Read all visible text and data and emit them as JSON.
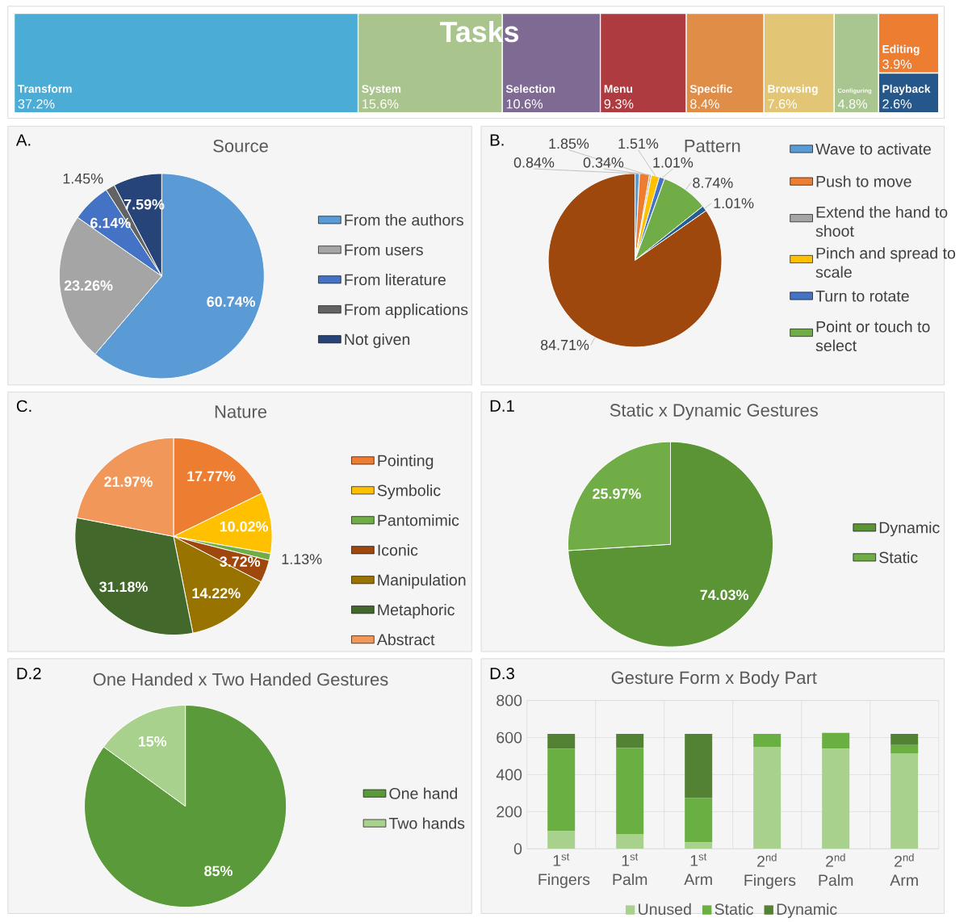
{
  "chart_data": [
    {
      "type": "other",
      "title": "Tasks",
      "categories": [
        "Transform",
        "System",
        "Selection",
        "Menu",
        "Specific",
        "Browsing",
        "Configuring",
        "Editing",
        "Playback"
      ],
      "values": [
        37.2,
        15.6,
        10.6,
        9.3,
        8.4,
        7.6,
        4.8,
        3.9,
        2.6
      ],
      "value_labels": [
        "37.2%",
        "15.6%",
        "10.6%",
        "9.3%",
        "8.4%",
        "7.6%",
        "4.8%",
        "3.9%",
        "2.6%"
      ],
      "colors": [
        "#4bacd6",
        "#a9c48c",
        "#7e6a92",
        "#ad3b3f",
        "#e08d48",
        "#e2c675",
        "#aac690",
        "#ed7d31",
        "#25578a"
      ]
    },
    {
      "type": "pie",
      "title": "Source",
      "annotations": [
        "A."
      ],
      "categories": [
        "From the authors",
        "From users",
        "From literature",
        "From applications",
        "Not given"
      ],
      "values": [
        60.74,
        23.26,
        6.14,
        1.45,
        7.59
      ],
      "value_labels": [
        "60.74%",
        "23.26%",
        "6.14%",
        "1.45%",
        "7.59%"
      ],
      "colors": [
        "#5b9bd5",
        "#a5a5a5",
        "#4472c4",
        "#636363",
        "#264478"
      ],
      "legend": "right"
    },
    {
      "type": "pie",
      "title": "Pattern",
      "annotations": [
        "B."
      ],
      "categories": [
        "Wave to activate",
        "Push to move",
        "Extend the hand to shoot",
        "Pinch and spread to scale",
        "Turn to rotate",
        "Point or touch to select",
        null,
        null
      ],
      "values": [
        0.84,
        1.85,
        0.34,
        1.51,
        1.01,
        8.74,
        1.01,
        84.71
      ],
      "value_labels": [
        "0.84%",
        "1.85%",
        "0.34%",
        "1.51%",
        "1.01%",
        "8.74%",
        "1.01%",
        "84.71%"
      ],
      "colors": [
        "#5b9bd5",
        "#ed7d31",
        "#a5a5a5",
        "#ffc000",
        "#4472c4",
        "#70ad47",
        "#255e91",
        "#9e480e"
      ],
      "legend": "right"
    },
    {
      "type": "pie",
      "title": "Nature",
      "annotations": [
        "C."
      ],
      "categories": [
        "Pointing",
        "Symbolic",
        "Pantomimic",
        "Iconic",
        "Manipulation",
        "Metaphoric",
        "Abstract"
      ],
      "values": [
        17.77,
        10.02,
        1.13,
        3.72,
        14.22,
        31.18,
        21.97
      ],
      "value_labels": [
        "17.77%",
        "10.02%",
        "1.13%",
        "3.72%",
        "14.22%",
        "31.18%",
        "21.97%"
      ],
      "colors": [
        "#ed7d31",
        "#ffc000",
        "#70ad47",
        "#9e480e",
        "#997300",
        "#43682b",
        "#f1975a"
      ],
      "legend": "right"
    },
    {
      "type": "pie",
      "title": "Static x Dynamic Gestures",
      "annotations": [
        "D.1"
      ],
      "categories": [
        "Dynamic",
        "Static"
      ],
      "values": [
        74.03,
        25.97
      ],
      "value_labels": [
        "74.03%",
        "25.97%"
      ],
      "colors": [
        "#5a9435",
        "#70ad47"
      ],
      "legend": "right"
    },
    {
      "type": "pie",
      "title": "One Handed x Two Handed Gestures",
      "annotations": [
        "D.2"
      ],
      "categories": [
        "One hand",
        "Two hands"
      ],
      "values": [
        85,
        15
      ],
      "value_labels": [
        "85%",
        "15%"
      ],
      "colors": [
        "#5b9a3b",
        "#a9d18e"
      ],
      "legend": "right"
    },
    {
      "type": "bar",
      "stacked": true,
      "title": "Gesture Form x Body Part",
      "annotations": [
        "D.3"
      ],
      "categories": [
        "1$^{st}$ Fingers",
        "1$^{st}$ Palm",
        "1$^{st}$ Arm",
        "2$^{nd}$ Fingers",
        "2$^{nd}$ Palm",
        "2$^{nd}$ Arm"
      ],
      "series": [
        {
          "name": "Unused",
          "color": "#a9d18e",
          "values": [
            95,
            80,
            35,
            550,
            540,
            515
          ]
        },
        {
          "name": "Static",
          "color": "#6aaf42",
          "values": [
            445,
            465,
            240,
            70,
            85,
            45
          ]
        },
        {
          "name": "Dynamic",
          "color": "#548235",
          "values": [
            80,
            75,
            345,
            0,
            0,
            60
          ]
        }
      ],
      "ylim": [
        0,
        800
      ],
      "yticks": [
        0,
        200,
        400,
        600,
        800
      ],
      "grid": true,
      "legend": "bottom"
    }
  ]
}
